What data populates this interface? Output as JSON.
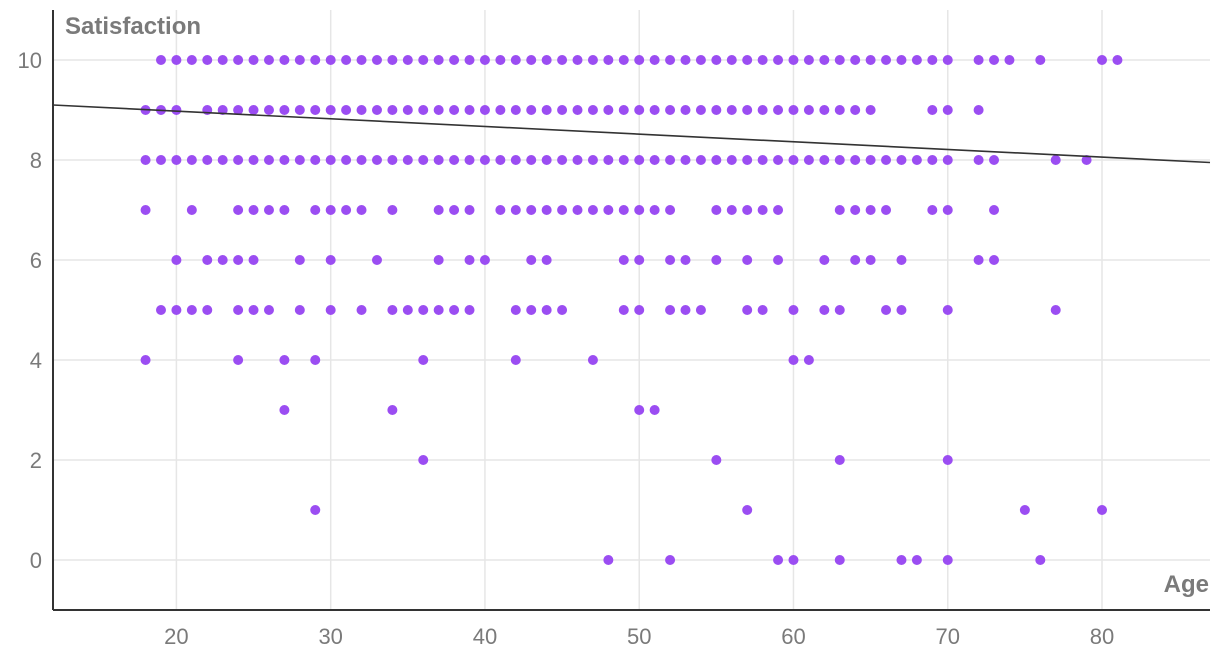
{
  "chart_data": {
    "type": "scatter",
    "xlabel": "Age",
    "ylabel": "Satisfaction",
    "xlim": [
      12,
      87
    ],
    "ylim": [
      -1,
      11
    ],
    "xticks": [
      20,
      30,
      40,
      50,
      60,
      70,
      80
    ],
    "yticks": [
      0,
      2,
      4,
      6,
      8,
      10
    ],
    "grid": true,
    "legend": "none",
    "colors": {
      "points": "#9b4df2",
      "trend": "#333333",
      "grid": "#e6e6e6",
      "text": "#7a7a7a"
    },
    "trend_line": {
      "x": [
        12,
        87
      ],
      "y": [
        9.1,
        7.95
      ]
    },
    "rows": [
      {
        "y": 10,
        "x": [
          19,
          20,
          21,
          22,
          23,
          24,
          25,
          26,
          27,
          28,
          29,
          30,
          31,
          32,
          33,
          34,
          35,
          36,
          37,
          38,
          39,
          40,
          41,
          42,
          43,
          44,
          45,
          46,
          47,
          48,
          49,
          50,
          51,
          52,
          53,
          54,
          55,
          56,
          57,
          58,
          59,
          60,
          61,
          62,
          63,
          64,
          65,
          66,
          67,
          68,
          69,
          70,
          72,
          73,
          74,
          76,
          80,
          81
        ]
      },
      {
        "y": 9,
        "x": [
          18,
          19,
          20,
          22,
          23,
          24,
          25,
          26,
          27,
          28,
          29,
          30,
          31,
          32,
          33,
          34,
          35,
          36,
          37,
          38,
          39,
          40,
          41,
          42,
          43,
          44,
          45,
          46,
          47,
          48,
          49,
          50,
          51,
          52,
          53,
          54,
          55,
          56,
          57,
          58,
          59,
          60,
          61,
          62,
          63,
          64,
          65,
          69,
          70,
          72
        ]
      },
      {
        "y": 8,
        "x": [
          18,
          19,
          20,
          21,
          22,
          23,
          24,
          25,
          26,
          27,
          28,
          29,
          30,
          31,
          32,
          33,
          34,
          35,
          36,
          37,
          38,
          39,
          40,
          41,
          42,
          43,
          44,
          45,
          46,
          47,
          48,
          49,
          50,
          51,
          52,
          53,
          54,
          55,
          56,
          57,
          58,
          59,
          60,
          61,
          62,
          63,
          64,
          65,
          66,
          67,
          68,
          69,
          70,
          72,
          73,
          77,
          79
        ]
      },
      {
        "y": 7,
        "x": [
          18,
          21,
          24,
          25,
          26,
          27,
          29,
          30,
          31,
          32,
          34,
          37,
          38,
          39,
          41,
          42,
          43,
          44,
          45,
          46,
          47,
          48,
          49,
          50,
          51,
          52,
          55,
          56,
          57,
          58,
          59,
          63,
          64,
          65,
          66,
          69,
          70,
          73
        ]
      },
      {
        "y": 6,
        "x": [
          20,
          22,
          23,
          24,
          25,
          28,
          30,
          33,
          37,
          39,
          40,
          43,
          44,
          49,
          50,
          52,
          53,
          55,
          57,
          59,
          62,
          64,
          65,
          67,
          72,
          73
        ]
      },
      {
        "y": 5,
        "x": [
          19,
          20,
          21,
          22,
          24,
          25,
          26,
          28,
          30,
          32,
          34,
          35,
          36,
          37,
          38,
          39,
          42,
          43,
          44,
          45,
          49,
          50,
          52,
          53,
          54,
          57,
          58,
          60,
          62,
          63,
          66,
          67,
          70,
          77
        ]
      },
      {
        "y": 4,
        "x": [
          18,
          24,
          27,
          29,
          36,
          42,
          47,
          60,
          61
        ]
      },
      {
        "y": 3,
        "x": [
          27,
          34,
          50,
          51
        ]
      },
      {
        "y": 2,
        "x": [
          36,
          55,
          63,
          70
        ]
      },
      {
        "y": 1,
        "x": [
          29,
          57,
          75,
          80
        ]
      },
      {
        "y": 0,
        "x": [
          48,
          52,
          59,
          60,
          63,
          67,
          68,
          70,
          76
        ]
      }
    ]
  }
}
